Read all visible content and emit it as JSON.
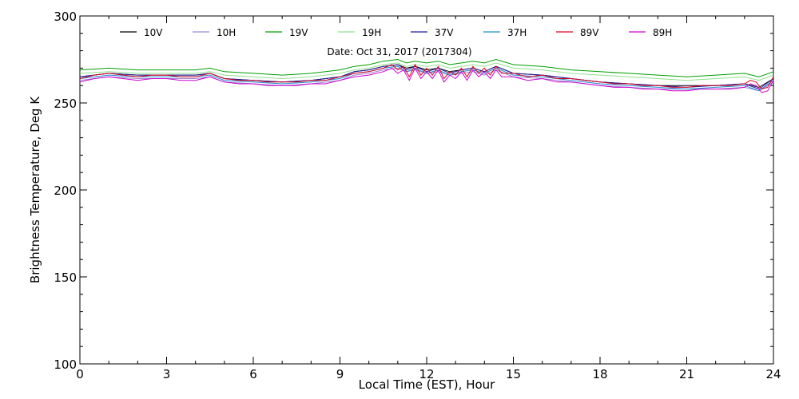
{
  "chart_data": {
    "type": "line",
    "title": "",
    "annotation": "Date: Oct 31, 2017 (2017304)",
    "xlabel": "Local Time (EST), Hour",
    "ylabel": "Brightness Temperature, Deg  K",
    "xlim": [
      0,
      24
    ],
    "ylim": [
      100,
      300
    ],
    "xticks": [
      0,
      3,
      6,
      9,
      12,
      15,
      18,
      21,
      24
    ],
    "yticks": [
      100,
      150,
      200,
      250,
      300
    ],
    "grid": false,
    "legend_position": "top",
    "series": [
      {
        "name": "10V",
        "color": "#000000",
        "x": [
          0,
          1,
          2,
          3,
          4,
          4.5,
          5,
          6,
          7,
          8,
          9,
          9.5,
          10,
          10.5,
          11,
          11.3,
          11.6,
          12,
          12.4,
          12.8,
          13.2,
          13.6,
          14,
          14.4,
          15,
          16,
          17,
          18,
          19,
          20,
          21,
          22,
          23,
          23.5,
          24
        ],
        "y": [
          265,
          267,
          266,
          266,
          266,
          267,
          264,
          263,
          262,
          263,
          265,
          268,
          269,
          271,
          272,
          270,
          271,
          269,
          270,
          268,
          269,
          270,
          268,
          271,
          267,
          266,
          264,
          262,
          261,
          260,
          260,
          260,
          261,
          259,
          264
        ]
      },
      {
        "name": "10H",
        "color": "#9b86d6",
        "x": [
          0,
          1,
          2,
          3,
          4,
          4.5,
          5,
          6,
          7,
          8,
          9,
          9.5,
          10,
          10.5,
          11,
          11.3,
          11.6,
          12,
          12.4,
          12.8,
          13.2,
          13.6,
          14,
          14.4,
          15,
          16,
          17,
          18,
          19,
          20,
          21,
          22,
          23,
          23.5,
          24
        ],
        "y": [
          263,
          265,
          264,
          264,
          264,
          265,
          262,
          261,
          260,
          261,
          263,
          266,
          267,
          269,
          270,
          268,
          269,
          267,
          268,
          266,
          267,
          268,
          266,
          269,
          265,
          264,
          262,
          260,
          259,
          258,
          258,
          258,
          259,
          257,
          262
        ]
      },
      {
        "name": "19V",
        "color": "#00a000",
        "x": [
          0,
          1,
          2,
          3,
          4,
          4.5,
          5,
          6,
          7,
          8,
          9,
          9.5,
          10,
          10.5,
          11,
          11.3,
          11.6,
          12,
          12.4,
          12.8,
          13.2,
          13.6,
          14,
          14.4,
          15,
          16,
          17,
          18,
          19,
          20,
          21,
          22,
          23,
          23.5,
          24
        ],
        "y": [
          269,
          270,
          269,
          269,
          269,
          270,
          268,
          267,
          266,
          267,
          269,
          271,
          272,
          274,
          275,
          273,
          274,
          273,
          274,
          272,
          273,
          274,
          273,
          275,
          272,
          271,
          269,
          268,
          267,
          266,
          265,
          266,
          267,
          265,
          268
        ]
      },
      {
        "name": "19H",
        "color": "#8fe08f",
        "x": [
          0,
          1,
          2,
          3,
          4,
          4.5,
          5,
          6,
          7,
          8,
          9,
          9.5,
          10,
          10.5,
          11,
          11.3,
          11.6,
          12,
          12.4,
          12.8,
          13.2,
          13.6,
          14,
          14.4,
          15,
          16,
          17,
          18,
          19,
          20,
          21,
          22,
          23,
          23.5,
          24
        ],
        "y": [
          267,
          268,
          267,
          267,
          267,
          268,
          266,
          265,
          264,
          265,
          267,
          269,
          270,
          272,
          273,
          271,
          272,
          271,
          272,
          270,
          271,
          272,
          271,
          273,
          270,
          269,
          267,
          266,
          265,
          264,
          263,
          264,
          265,
          263,
          266
        ]
      },
      {
        "name": "37V",
        "color": "#1c1ca0",
        "x": [
          0,
          1,
          2,
          3,
          4,
          4.5,
          5,
          6,
          7,
          8,
          9,
          9.5,
          10,
          10.5,
          11,
          11.3,
          11.6,
          12,
          12.4,
          12.8,
          13.2,
          13.6,
          14,
          14.4,
          15,
          16,
          17,
          18,
          19,
          20,
          21,
          22,
          23,
          23.5,
          24
        ],
        "y": [
          265,
          267,
          266,
          266,
          266,
          267,
          264,
          263,
          262,
          263,
          265,
          268,
          269,
          271,
          272,
          269,
          271,
          268,
          270,
          267,
          269,
          270,
          268,
          271,
          267,
          266,
          264,
          262,
          261,
          260,
          259,
          260,
          261,
          258,
          264
        ]
      },
      {
        "name": "37H",
        "color": "#1c8fd0",
        "x": [
          0,
          1,
          2,
          3,
          4,
          4.5,
          5,
          6,
          7,
          8,
          9,
          9.5,
          10,
          10.5,
          11,
          11.3,
          11.6,
          12,
          12.4,
          12.8,
          13.2,
          13.6,
          14,
          14.4,
          15,
          16,
          17,
          18,
          19,
          20,
          21,
          22,
          23,
          23.5,
          24
        ],
        "y": [
          264,
          266,
          265,
          265,
          265,
          266,
          263,
          262,
          261,
          262,
          264,
          267,
          268,
          270,
          271,
          268,
          270,
          267,
          269,
          266,
          268,
          269,
          267,
          270,
          266,
          265,
          263,
          261,
          260,
          259,
          258,
          259,
          260,
          257,
          263
        ]
      },
      {
        "name": "89V",
        "color": "#e00020",
        "x": [
          0,
          0.5,
          1,
          1.5,
          2,
          2.5,
          3,
          3.5,
          4,
          4.5,
          5,
          5.5,
          6,
          6.5,
          7,
          7.5,
          8,
          8.5,
          9,
          9.5,
          10,
          10.5,
          10.8,
          11,
          11.2,
          11.4,
          11.6,
          11.8,
          12,
          12.2,
          12.4,
          12.6,
          12.8,
          13,
          13.2,
          13.4,
          13.6,
          13.8,
          14,
          14.2,
          14.4,
          14.6,
          15,
          15.5,
          16,
          16.5,
          17,
          17.5,
          18,
          18.5,
          19,
          19.5,
          20,
          20.5,
          21,
          21.5,
          22,
          22.5,
          23,
          23.2,
          23.4,
          23.6,
          23.8,
          24
        ],
        "y": [
          264,
          266,
          267,
          266,
          265,
          266,
          266,
          265,
          265,
          267,
          264,
          263,
          263,
          262,
          262,
          262,
          263,
          263,
          265,
          267,
          268,
          270,
          272,
          269,
          271,
          265,
          272,
          266,
          270,
          266,
          271,
          264,
          268,
          266,
          270,
          265,
          271,
          267,
          270,
          266,
          271,
          267,
          267,
          265,
          266,
          264,
          264,
          263,
          262,
          261,
          261,
          260,
          260,
          259,
          259,
          260,
          260,
          260,
          261,
          263,
          262,
          258,
          259,
          265
        ]
      },
      {
        "name": "89H",
        "color": "#d000d0",
        "x": [
          0,
          0.5,
          1,
          1.5,
          2,
          2.5,
          3,
          3.5,
          4,
          4.5,
          5,
          5.5,
          6,
          6.5,
          7,
          7.5,
          8,
          8.5,
          9,
          9.5,
          10,
          10.5,
          10.8,
          11,
          11.2,
          11.4,
          11.6,
          11.8,
          12,
          12.2,
          12.4,
          12.6,
          12.8,
          13,
          13.2,
          13.4,
          13.6,
          13.8,
          14,
          14.2,
          14.4,
          14.6,
          15,
          15.5,
          16,
          16.5,
          17,
          17.5,
          18,
          18.5,
          19,
          19.5,
          20,
          20.5,
          21,
          21.5,
          22,
          22.5,
          23,
          23.2,
          23.4,
          23.6,
          23.8,
          24
        ],
        "y": [
          262,
          264,
          265,
          264,
          263,
          264,
          264,
          263,
          263,
          265,
          262,
          261,
          261,
          260,
          260,
          260,
          261,
          261,
          263,
          265,
          266,
          268,
          270,
          267,
          269,
          263,
          270,
          264,
          268,
          264,
          269,
          262,
          266,
          264,
          268,
          263,
          269,
          265,
          268,
          264,
          269,
          265,
          265,
          263,
          264,
          262,
          262,
          261,
          260,
          259,
          259,
          258,
          258,
          257,
          257,
          258,
          258,
          258,
          259,
          261,
          260,
          256,
          257,
          263
        ]
      }
    ]
  }
}
